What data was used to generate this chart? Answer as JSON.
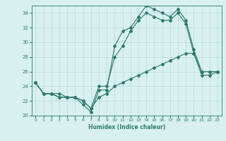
{
  "xlabel": "Humidex (Indice chaleur)",
  "bg_color": "#d8f0f0",
  "line_color": "#2a7a6a",
  "grid_color": "#b8dada",
  "xlim": [
    -0.5,
    23.5
  ],
  "ylim": [
    20,
    35
  ],
  "yticks": [
    20,
    22,
    24,
    26,
    28,
    30,
    32,
    34
  ],
  "xticks": [
    0,
    1,
    2,
    3,
    4,
    5,
    6,
    7,
    8,
    9,
    10,
    11,
    12,
    13,
    14,
    15,
    16,
    17,
    18,
    19,
    20,
    21,
    22,
    23
  ],
  "series1_x": [
    0,
    1,
    2,
    3,
    4,
    5,
    6,
    7,
    8,
    9,
    10,
    11,
    12,
    13,
    14,
    15,
    16,
    17,
    18,
    19,
    20,
    21,
    22,
    23
  ],
  "series1_y": [
    24.5,
    23.0,
    23.0,
    23.0,
    22.5,
    22.5,
    21.5,
    20.5,
    23.5,
    23.5,
    29.5,
    31.5,
    32.0,
    33.5,
    35.0,
    34.5,
    34.0,
    33.5,
    34.5,
    33.0,
    29.0,
    26.0,
    26.0,
    26.0
  ],
  "series2_x": [
    0,
    1,
    2,
    3,
    4,
    5,
    6,
    7,
    8,
    9,
    10,
    11,
    12,
    13,
    14,
    15,
    16,
    17,
    18,
    19,
    20,
    21,
    22,
    23
  ],
  "series2_y": [
    24.5,
    23.0,
    23.0,
    22.5,
    22.5,
    22.5,
    22.0,
    21.0,
    24.0,
    24.0,
    28.0,
    29.5,
    31.5,
    33.0,
    34.0,
    33.5,
    33.0,
    33.0,
    34.0,
    32.5,
    28.5,
    26.0,
    26.0,
    26.0
  ],
  "series3_x": [
    0,
    1,
    2,
    3,
    4,
    5,
    6,
    7,
    8,
    9,
    10,
    11,
    12,
    13,
    14,
    15,
    16,
    17,
    18,
    19,
    20,
    21,
    22,
    23
  ],
  "series3_y": [
    24.5,
    23.0,
    23.0,
    22.5,
    22.5,
    22.5,
    22.0,
    21.0,
    22.5,
    23.0,
    24.0,
    24.5,
    25.0,
    25.5,
    26.0,
    26.5,
    27.0,
    27.5,
    28.0,
    28.5,
    28.5,
    25.5,
    25.5,
    26.0
  ]
}
